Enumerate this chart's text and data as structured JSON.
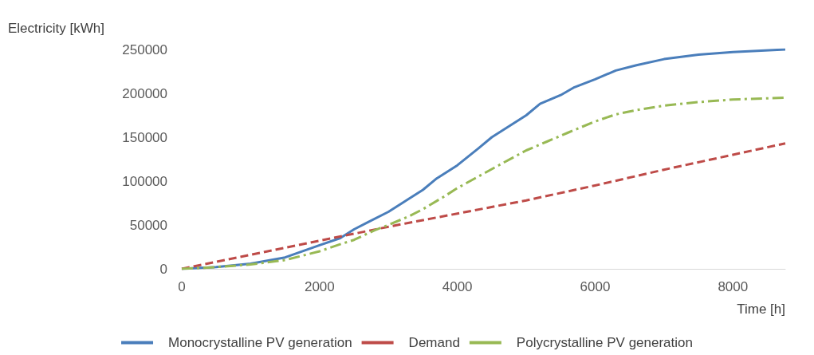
{
  "chart_data": {
    "type": "line",
    "ylabel": "Electricity [kWh]",
    "xlabel": "Time [h]",
    "xlim": [
      0,
      8760
    ],
    "xticks": [
      0,
      2000,
      4000,
      6000,
      8000
    ],
    "ylim": [
      0,
      250000
    ],
    "yticks": [
      0,
      50000,
      100000,
      150000,
      200000,
      250000
    ],
    "grid": false,
    "legend": "bottom",
    "marker": "none",
    "series": [
      {
        "name": "Monocrystalline PV generation",
        "color": "#4a7ebb",
        "line_style": "solid",
        "x": [
          0,
          500,
          1000,
          1500,
          2000,
          2300,
          2500,
          2700,
          3000,
          3200,
          3500,
          3700,
          4000,
          4300,
          4500,
          4800,
          5000,
          5200,
          5500,
          5700,
          6000,
          6300,
          6600,
          7000,
          7500,
          8000,
          8760
        ],
        "values": [
          0,
          2000,
          6000,
          13000,
          27000,
          35000,
          45000,
          53000,
          65000,
          75000,
          90000,
          103000,
          118000,
          137000,
          150000,
          165000,
          175000,
          188000,
          198000,
          207000,
          216000,
          226000,
          232000,
          239000,
          244000,
          247000,
          250000
        ]
      },
      {
        "name": "Demand",
        "color": "#be4b48",
        "line_style": "dashed",
        "x": [
          0,
          1000,
          2000,
          3000,
          4000,
          5000,
          6000,
          7000,
          8000,
          8760
        ],
        "values": [
          0,
          16000,
          32000,
          48000,
          63000,
          78000,
          95000,
          113000,
          130000,
          143000
        ]
      },
      {
        "name": "Polycrystalline PV generation",
        "color": "#98b954",
        "line_style": "dashdot",
        "x": [
          0,
          500,
          1000,
          1500,
          2000,
          2300,
          2500,
          2800,
          3000,
          3300,
          3500,
          3800,
          4000,
          4300,
          4600,
          5000,
          5300,
          5600,
          6000,
          6300,
          6600,
          7000,
          7500,
          8000,
          8760
        ],
        "values": [
          0,
          2000,
          5000,
          10000,
          20000,
          28000,
          33000,
          44000,
          50000,
          60000,
          68000,
          82000,
          92000,
          105000,
          118000,
          135000,
          145000,
          155000,
          168000,
          176000,
          181000,
          186000,
          190000,
          193000,
          195000
        ]
      }
    ]
  }
}
